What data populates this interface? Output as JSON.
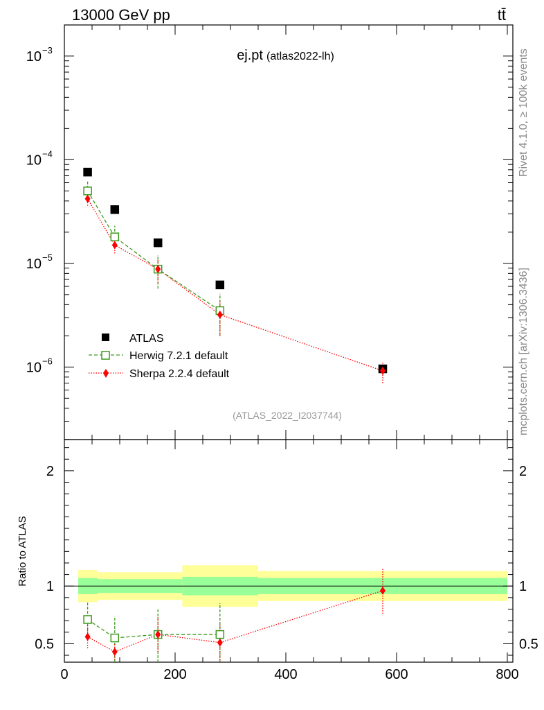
{
  "header": {
    "energy_label": "13000 GeV pp",
    "process_label": "tt̄",
    "plot_title": "ej.pt",
    "plot_tag": "(atlas2022-lh)",
    "analysis_id": "(ATLAS_2022_I2037744)",
    "side_rivet": "Rivet 4.1.0, ≥ 100k events",
    "side_mcplots": "mcplots.cern.ch [arXiv:1306.3436]"
  },
  "legend": {
    "atlas": "ATLAS",
    "herwig": "Herwig 7.2.1 default",
    "sherpa": "Sherpa 2.2.4 default"
  },
  "ratio_ylabel": "Ratio to ATLAS",
  "axes": {
    "main_y_ticks": [
      {
        "exp": -3,
        "label": "10",
        "sup": "−3"
      },
      {
        "exp": -4,
        "label": "10",
        "sup": "−4"
      },
      {
        "exp": -5,
        "label": "10",
        "sup": "−5"
      },
      {
        "exp": -6,
        "label": "10",
        "sup": "−6"
      }
    ],
    "ratio_y_ticks": [
      {
        "value": 2,
        "label": "2"
      },
      {
        "value": 1,
        "label": "1"
      },
      {
        "value": 0.5,
        "label": "0.5"
      }
    ],
    "x_ticks": [
      {
        "value": 0,
        "label": "0"
      },
      {
        "value": 200,
        "label": "200"
      },
      {
        "value": 400,
        "label": "400"
      },
      {
        "value": 600,
        "label": "600"
      },
      {
        "value": 800,
        "label": "800"
      }
    ]
  },
  "colors": {
    "atlas": "#000000",
    "herwig": "#3a9a1a",
    "sherpa": "#ff0000",
    "band_inner": "#99ff99",
    "band_outer": "#ffff99",
    "analysis_text": "#999999",
    "side_text": "#888888"
  },
  "chart_data": {
    "type": "scatter",
    "xlim": [
      0,
      810
    ],
    "ylim_main_log10": [
      -6.7,
      -2.7
    ],
    "ylim_ratio": [
      0.34,
      2.27
    ],
    "bins": [
      [
        25,
        60
      ],
      [
        60,
        125
      ],
      [
        125,
        213
      ],
      [
        213,
        350
      ],
      [
        350,
        800
      ]
    ],
    "series": [
      {
        "name": "ATLAS",
        "x": [
          42,
          91,
          169,
          281,
          575
        ],
        "y": [
          7.6e-05,
          3.3e-05,
          1.58e-05,
          6.2e-06,
          9.6e-07
        ]
      },
      {
        "name": "Herwig 7.2.1 default",
        "x": [
          42,
          91,
          169,
          281
        ],
        "y": [
          5e-05,
          1.8e-05,
          8.8e-06,
          3.5e-06
        ],
        "y_low": [
          4e-05,
          1.4e-05,
          5.7e-06,
          2e-06
        ],
        "y_high": [
          6.3e-05,
          2.3e-05,
          1.2e-05,
          5.1e-06
        ],
        "ratio": [
          0.71,
          0.55,
          0.58,
          0.58
        ],
        "ratio_low": [
          0.58,
          0.34,
          0.34,
          0.34
        ],
        "ratio_high": [
          0.86,
          0.74,
          0.8,
          0.85
        ]
      },
      {
        "name": "Sherpa 2.2.4 default",
        "x": [
          42,
          91,
          169,
          281,
          575
        ],
        "y": [
          4.2e-05,
          1.5e-05,
          8.8e-06,
          3.2e-06,
          9.2e-07
        ],
        "y_low": [
          3.6e-05,
          1.25e-05,
          6.5e-06,
          2e-06,
          7e-07
        ],
        "y_high": [
          4.8e-05,
          1.75e-05,
          1.1e-05,
          4.4e-06,
          1.12e-06
        ],
        "ratio": [
          0.56,
          0.43,
          0.58,
          0.51,
          0.96
        ],
        "ratio_low": [
          0.46,
          0.36,
          0.43,
          0.34,
          0.76
        ],
        "ratio_high": [
          0.66,
          0.5,
          0.73,
          0.68,
          1.16
        ]
      }
    ],
    "ratio_band_inner": [
      [
        0.93,
        1.07
      ],
      [
        0.94,
        1.06
      ],
      [
        0.94,
        1.06
      ],
      [
        0.92,
        1.08
      ],
      [
        0.93,
        1.07
      ]
    ],
    "ratio_band_outer": [
      [
        0.86,
        1.14
      ],
      [
        0.88,
        1.12
      ],
      [
        0.88,
        1.12
      ],
      [
        0.82,
        1.18
      ],
      [
        0.87,
        1.13
      ]
    ]
  }
}
